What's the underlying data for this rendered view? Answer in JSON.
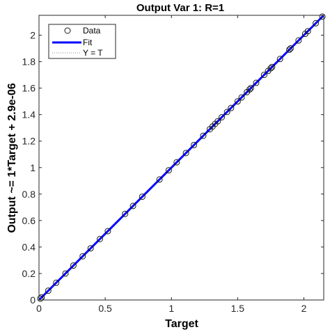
{
  "chart_data": {
    "type": "scatter",
    "title": "Output Var 1: R=1",
    "xlabel": "Target",
    "ylabel": "Output ~= 1*Target + 2.9e-06",
    "xlim": [
      0,
      2.15
    ],
    "ylim": [
      0,
      2.15
    ],
    "xticks": [
      "0",
      "0.5",
      "1",
      "1.5",
      "2"
    ],
    "yticks": [
      "0",
      "0.2",
      "0.4",
      "0.6",
      "0.8",
      "1",
      "1.2",
      "1.4",
      "1.6",
      "1.8",
      "2"
    ],
    "grid": false,
    "legend_position": "top-left",
    "legend": [
      {
        "name": "Data",
        "style": "marker-circle"
      },
      {
        "name": "Fit",
        "style": "line-solid-blue"
      },
      {
        "name": "Y = T",
        "style": "line-dotted"
      }
    ],
    "fit": {
      "slope": 1,
      "intercept": 2.9e-06
    },
    "series": [
      {
        "name": "Data",
        "x": [
          0.01,
          0.02,
          0.07,
          0.13,
          0.2,
          0.26,
          0.33,
          0.39,
          0.46,
          0.52,
          0.65,
          0.71,
          0.78,
          0.91,
          0.98,
          1.04,
          1.11,
          1.17,
          1.24,
          1.29,
          1.31,
          1.33,
          1.35,
          1.38,
          1.42,
          1.45,
          1.5,
          1.53,
          1.57,
          1.59,
          1.6,
          1.64,
          1.7,
          1.73,
          1.75,
          1.76,
          1.82,
          1.89,
          1.9,
          1.96,
          2.01,
          2.03,
          2.09,
          2.14
        ],
        "y": [
          0.01,
          0.02,
          0.07,
          0.13,
          0.2,
          0.26,
          0.33,
          0.39,
          0.46,
          0.52,
          0.65,
          0.71,
          0.78,
          0.91,
          0.98,
          1.04,
          1.11,
          1.17,
          1.24,
          1.29,
          1.31,
          1.33,
          1.35,
          1.38,
          1.42,
          1.45,
          1.5,
          1.53,
          1.57,
          1.59,
          1.6,
          1.64,
          1.7,
          1.73,
          1.75,
          1.76,
          1.82,
          1.89,
          1.9,
          1.96,
          2.01,
          2.03,
          2.09,
          2.14
        ]
      }
    ]
  },
  "colors": {
    "fit": "#0000ff",
    "data_marker": "#1a1a1a",
    "yt_line": "#808080",
    "axes": "#262626"
  }
}
